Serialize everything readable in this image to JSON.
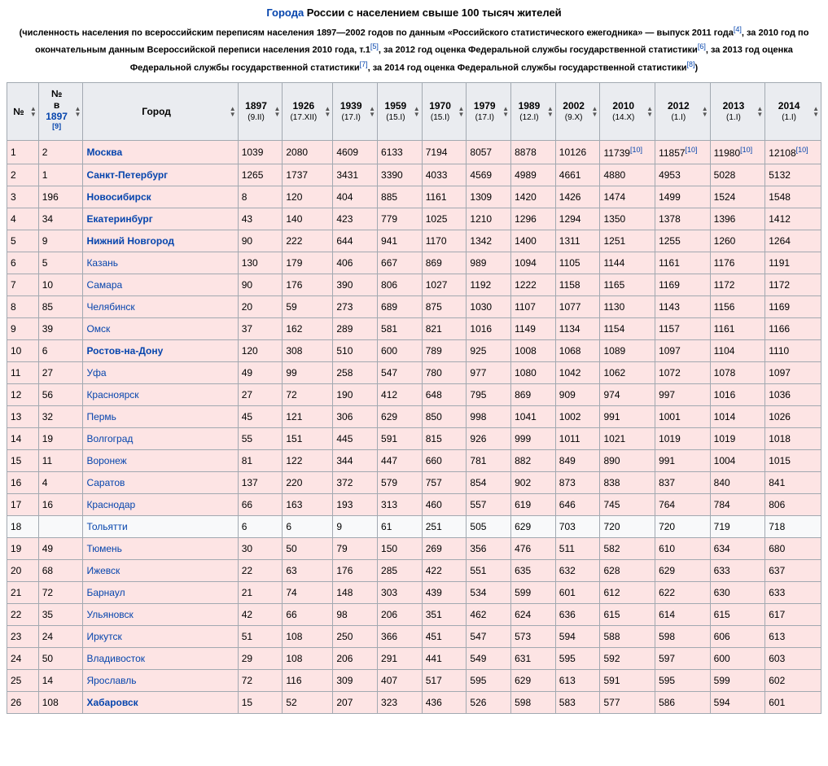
{
  "title_link": "Города",
  "title_rest": " России с населением свыше 100 тысяч жителей",
  "subtitle_parts": [
    "(численность населения по всероссийским переписям населения 1897—2002 годов по данным «Российского статистического ежегодника» — выпуск 2011 года",
    ", за 2010 год по окончательным данным Всероссийской переписи населения 2010 года, т.1",
    ", за 2012 год оценка Федеральной службы государственной статистики",
    ", за 2013 год оценка Федеральной службы государственной статистики",
    ", за 2014 год оценка Федеральной службы государственной статистики",
    ")"
  ],
  "subtitle_refs": [
    "[4]",
    "[5]",
    "[6]",
    "[7]",
    "[8]"
  ],
  "header": {
    "no": "№",
    "no1897_top": "№",
    "no1897_mid": "в",
    "no1897_link": "1897",
    "no1897_ref": "[9]",
    "city": "Город",
    "years": [
      {
        "y": "1897",
        "d": "(9.II)"
      },
      {
        "y": "1926",
        "d": "(17.XII)"
      },
      {
        "y": "1939",
        "d": "(17.I)"
      },
      {
        "y": "1959",
        "d": "(15.I)"
      },
      {
        "y": "1970",
        "d": "(15.I)"
      },
      {
        "y": "1979",
        "d": "(17.I)"
      },
      {
        "y": "1989",
        "d": "(12.I)"
      },
      {
        "y": "2002",
        "d": "(9.X)"
      },
      {
        "y": "2010",
        "d": "(14.X)"
      },
      {
        "y": "2012",
        "d": "(1.I)"
      },
      {
        "y": "2013",
        "d": "(1.I)"
      },
      {
        "y": "2014",
        "d": "(1.I)"
      }
    ]
  },
  "ref10": "[10]",
  "rows": [
    {
      "n": "1",
      "n1897": "2",
      "city": "Москва",
      "bold": true,
      "pink": true,
      "v": [
        "1039",
        "2080",
        "4609",
        "6133",
        "7194",
        "8057",
        "8878",
        "10126",
        "11739",
        "11857",
        "11980",
        "12108"
      ],
      "ref10": true
    },
    {
      "n": "2",
      "n1897": "1",
      "city": "Санкт-Петербург",
      "bold": true,
      "pink": true,
      "v": [
        "1265",
        "1737",
        "3431",
        "3390",
        "4033",
        "4569",
        "4989",
        "4661",
        "4880",
        "4953",
        "5028",
        "5132"
      ]
    },
    {
      "n": "3",
      "n1897": "196",
      "city": "Новосибирск",
      "bold": true,
      "pink": true,
      "v": [
        "8",
        "120",
        "404",
        "885",
        "1161",
        "1309",
        "1420",
        "1426",
        "1474",
        "1499",
        "1524",
        "1548"
      ]
    },
    {
      "n": "4",
      "n1897": "34",
      "city": "Екатеринбург",
      "bold": true,
      "pink": true,
      "v": [
        "43",
        "140",
        "423",
        "779",
        "1025",
        "1210",
        "1296",
        "1294",
        "1350",
        "1378",
        "1396",
        "1412"
      ]
    },
    {
      "n": "5",
      "n1897": "9",
      "city": "Нижний Новгород",
      "bold": true,
      "pink": true,
      "v": [
        "90",
        "222",
        "644",
        "941",
        "1170",
        "1342",
        "1400",
        "1311",
        "1251",
        "1255",
        "1260",
        "1264"
      ]
    },
    {
      "n": "6",
      "n1897": "5",
      "city": "Казань",
      "bold": false,
      "pink": true,
      "v": [
        "130",
        "179",
        "406",
        "667",
        "869",
        "989",
        "1094",
        "1105",
        "1144",
        "1161",
        "1176",
        "1191"
      ]
    },
    {
      "n": "7",
      "n1897": "10",
      "city": "Самара",
      "bold": false,
      "pink": true,
      "v": [
        "90",
        "176",
        "390",
        "806",
        "1027",
        "1192",
        "1222",
        "1158",
        "1165",
        "1169",
        "1172",
        "1172"
      ]
    },
    {
      "n": "8",
      "n1897": "85",
      "city": "Челябинск",
      "bold": false,
      "pink": true,
      "v": [
        "20",
        "59",
        "273",
        "689",
        "875",
        "1030",
        "1107",
        "1077",
        "1130",
        "1143",
        "1156",
        "1169"
      ]
    },
    {
      "n": "9",
      "n1897": "39",
      "city": "Омск",
      "bold": false,
      "pink": true,
      "v": [
        "37",
        "162",
        "289",
        "581",
        "821",
        "1016",
        "1149",
        "1134",
        "1154",
        "1157",
        "1161",
        "1166"
      ]
    },
    {
      "n": "10",
      "n1897": "6",
      "city": "Ростов-на-Дону",
      "bold": true,
      "pink": true,
      "v": [
        "120",
        "308",
        "510",
        "600",
        "789",
        "925",
        "1008",
        "1068",
        "1089",
        "1097",
        "1104",
        "1110"
      ]
    },
    {
      "n": "11",
      "n1897": "27",
      "city": "Уфа",
      "bold": false,
      "pink": true,
      "v": [
        "49",
        "99",
        "258",
        "547",
        "780",
        "977",
        "1080",
        "1042",
        "1062",
        "1072",
        "1078",
        "1097"
      ]
    },
    {
      "n": "12",
      "n1897": "56",
      "city": "Красноярск",
      "bold": false,
      "pink": true,
      "v": [
        "27",
        "72",
        "190",
        "412",
        "648",
        "795",
        "869",
        "909",
        "974",
        "997",
        "1016",
        "1036"
      ]
    },
    {
      "n": "13",
      "n1897": "32",
      "city": "Пермь",
      "bold": false,
      "pink": true,
      "v": [
        "45",
        "121",
        "306",
        "629",
        "850",
        "998",
        "1041",
        "1002",
        "991",
        "1001",
        "1014",
        "1026"
      ]
    },
    {
      "n": "14",
      "n1897": "19",
      "city": "Волгоград",
      "bold": false,
      "pink": true,
      "v": [
        "55",
        "151",
        "445",
        "591",
        "815",
        "926",
        "999",
        "1011",
        "1021",
        "1019",
        "1019",
        "1018"
      ]
    },
    {
      "n": "15",
      "n1897": "11",
      "city": "Воронеж",
      "bold": false,
      "pink": true,
      "v": [
        "81",
        "122",
        "344",
        "447",
        "660",
        "781",
        "882",
        "849",
        "890",
        "991",
        "1004",
        "1015"
      ]
    },
    {
      "n": "16",
      "n1897": "4",
      "city": "Саратов",
      "bold": false,
      "pink": true,
      "v": [
        "137",
        "220",
        "372",
        "579",
        "757",
        "854",
        "902",
        "873",
        "838",
        "837",
        "840",
        "841"
      ]
    },
    {
      "n": "17",
      "n1897": "16",
      "city": "Краснодар",
      "bold": false,
      "pink": true,
      "v": [
        "66",
        "163",
        "193",
        "313",
        "460",
        "557",
        "619",
        "646",
        "745",
        "764",
        "784",
        "806"
      ]
    },
    {
      "n": "18",
      "n1897": "",
      "city": "Тольятти",
      "bold": false,
      "pink": false,
      "v": [
        "6",
        "6",
        "9",
        "61",
        "251",
        "505",
        "629",
        "703",
        "720",
        "720",
        "719",
        "718"
      ]
    },
    {
      "n": "19",
      "n1897": "49",
      "city": "Тюмень",
      "bold": false,
      "pink": true,
      "v": [
        "30",
        "50",
        "79",
        "150",
        "269",
        "356",
        "476",
        "511",
        "582",
        "610",
        "634",
        "680"
      ]
    },
    {
      "n": "20",
      "n1897": "68",
      "city": "Ижевск",
      "bold": false,
      "pink": true,
      "v": [
        "22",
        "63",
        "176",
        "285",
        "422",
        "551",
        "635",
        "632",
        "628",
        "629",
        "633",
        "637"
      ]
    },
    {
      "n": "21",
      "n1897": "72",
      "city": "Барнаул",
      "bold": false,
      "pink": true,
      "v": [
        "21",
        "74",
        "148",
        "303",
        "439",
        "534",
        "599",
        "601",
        "612",
        "622",
        "630",
        "633"
      ]
    },
    {
      "n": "22",
      "n1897": "35",
      "city": "Ульяновск",
      "bold": false,
      "pink": true,
      "v": [
        "42",
        "66",
        "98",
        "206",
        "351",
        "462",
        "624",
        "636",
        "615",
        "614",
        "615",
        "617"
      ]
    },
    {
      "n": "23",
      "n1897": "24",
      "city": "Иркутск",
      "bold": false,
      "pink": true,
      "v": [
        "51",
        "108",
        "250",
        "366",
        "451",
        "547",
        "573",
        "594",
        "588",
        "598",
        "606",
        "613"
      ]
    },
    {
      "n": "24",
      "n1897": "50",
      "city": "Владивосток",
      "bold": false,
      "pink": true,
      "v": [
        "29",
        "108",
        "206",
        "291",
        "441",
        "549",
        "631",
        "595",
        "592",
        "597",
        "600",
        "603"
      ]
    },
    {
      "n": "25",
      "n1897": "14",
      "city": "Ярославль",
      "bold": false,
      "pink": true,
      "v": [
        "72",
        "116",
        "309",
        "407",
        "517",
        "595",
        "629",
        "613",
        "591",
        "595",
        "599",
        "602"
      ]
    },
    {
      "n": "26",
      "n1897": "108",
      "city": "Хабаровск",
      "bold": true,
      "pink": true,
      "v": [
        "15",
        "52",
        "207",
        "323",
        "436",
        "526",
        "598",
        "583",
        "577",
        "586",
        "594",
        "601"
      ]
    }
  ],
  "colors": {
    "link": "#0645ad",
    "pink_row": "#fde4e4",
    "header_bg": "#eaecf0",
    "border": "#a2a9b1"
  }
}
